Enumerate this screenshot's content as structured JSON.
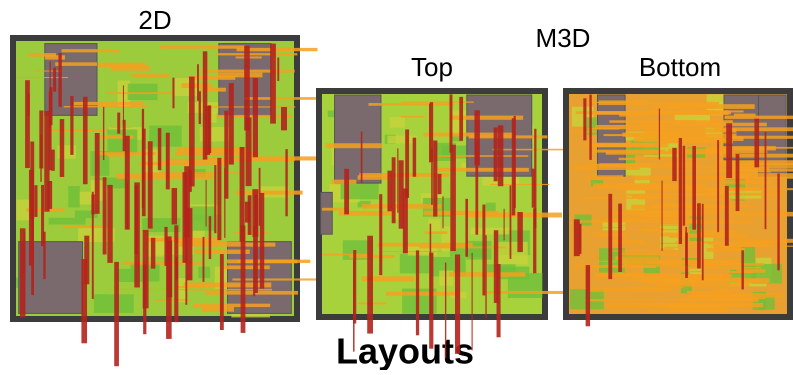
{
  "labels": {
    "left_title": "2D",
    "group_title": "M3D",
    "top": "Top",
    "bottom": "Bottom",
    "caption": "Layouts"
  }
}
